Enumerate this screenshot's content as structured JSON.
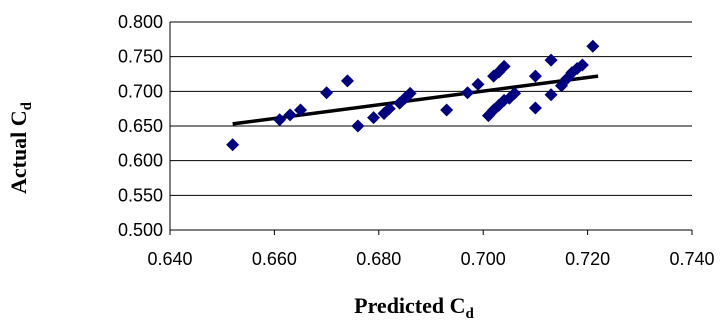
{
  "chart_data": {
    "type": "scatter",
    "xlabel": "Predicted C",
    "xlabel_sub": "d",
    "ylabel": "Actual C",
    "ylabel_sub": "d",
    "xlim": [
      0.64,
      0.74
    ],
    "ylim": [
      0.5,
      0.8
    ],
    "xticks": [
      "0.640",
      "0.660",
      "0.680",
      "0.700",
      "0.720",
      "0.740"
    ],
    "yticks": [
      "0.500",
      "0.550",
      "0.600",
      "0.650",
      "0.700",
      "0.750",
      "0.800"
    ],
    "grid": "horizontal",
    "marker": "diamond",
    "marker_color": "#000080",
    "trendline_color": "#000000",
    "trendline": {
      "x": [
        0.652,
        0.722
      ],
      "y": [
        0.653,
        0.722
      ]
    },
    "points": [
      {
        "x": 0.652,
        "y": 0.623
      },
      {
        "x": 0.661,
        "y": 0.659
      },
      {
        "x": 0.663,
        "y": 0.666
      },
      {
        "x": 0.665,
        "y": 0.673
      },
      {
        "x": 0.67,
        "y": 0.698
      },
      {
        "x": 0.674,
        "y": 0.715
      },
      {
        "x": 0.676,
        "y": 0.65
      },
      {
        "x": 0.679,
        "y": 0.662
      },
      {
        "x": 0.681,
        "y": 0.668
      },
      {
        "x": 0.682,
        "y": 0.675
      },
      {
        "x": 0.684,
        "y": 0.683
      },
      {
        "x": 0.685,
        "y": 0.69
      },
      {
        "x": 0.686,
        "y": 0.697
      },
      {
        "x": 0.693,
        "y": 0.673
      },
      {
        "x": 0.697,
        "y": 0.698
      },
      {
        "x": 0.699,
        "y": 0.71
      },
      {
        "x": 0.701,
        "y": 0.665
      },
      {
        "x": 0.702,
        "y": 0.722
      },
      {
        "x": 0.702,
        "y": 0.673
      },
      {
        "x": 0.703,
        "y": 0.728
      },
      {
        "x": 0.703,
        "y": 0.68
      },
      {
        "x": 0.704,
        "y": 0.736
      },
      {
        "x": 0.704,
        "y": 0.687
      },
      {
        "x": 0.705,
        "y": 0.69
      },
      {
        "x": 0.706,
        "y": 0.697
      },
      {
        "x": 0.71,
        "y": 0.722
      },
      {
        "x": 0.71,
        "y": 0.676
      },
      {
        "x": 0.713,
        "y": 0.745
      },
      {
        "x": 0.713,
        "y": 0.695
      },
      {
        "x": 0.715,
        "y": 0.708
      },
      {
        "x": 0.716,
        "y": 0.718
      },
      {
        "x": 0.717,
        "y": 0.727
      },
      {
        "x": 0.718,
        "y": 0.733
      },
      {
        "x": 0.719,
        "y": 0.738
      },
      {
        "x": 0.721,
        "y": 0.765
      }
    ]
  }
}
